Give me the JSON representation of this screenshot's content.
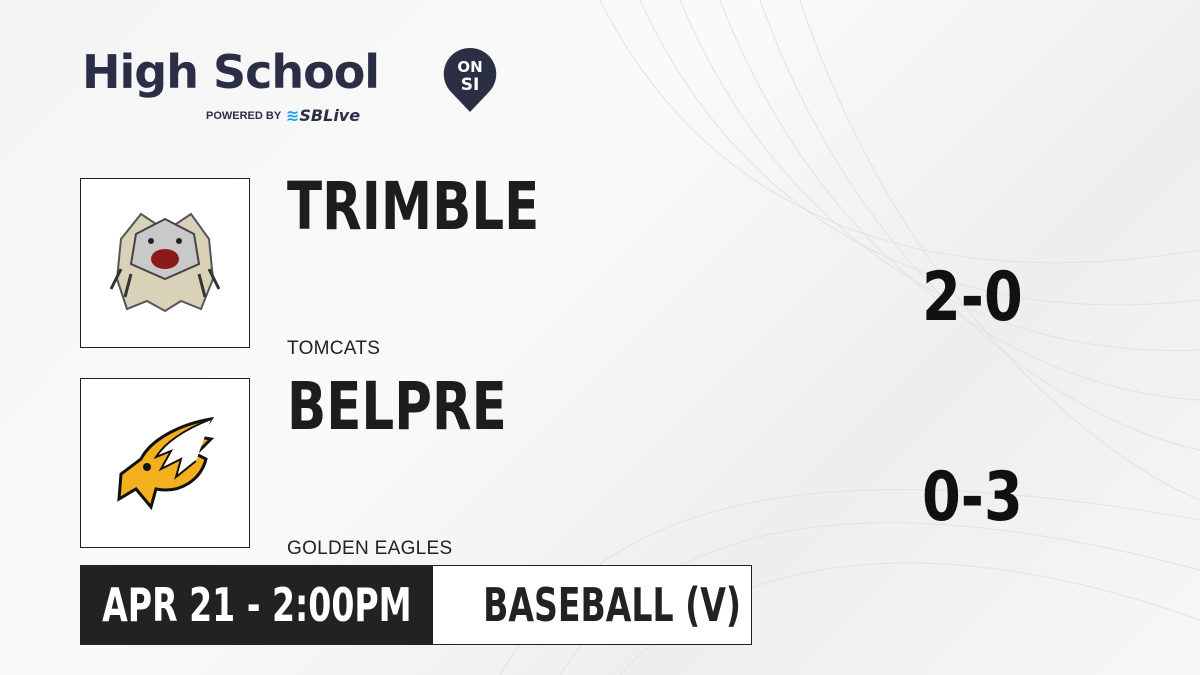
{
  "brand": {
    "title": "High School",
    "pin_text_top": "ON",
    "pin_text_bottom": "SI",
    "powered_by": "POWERED BY",
    "sponsor": "SBLive",
    "colors": {
      "navy": "#2b2f45",
      "sponsor_blue": "#1aa3e8"
    }
  },
  "teams": [
    {
      "name": "TRIMBLE",
      "mascot": "TOMCATS",
      "score": "2-0",
      "logo_icon": "tomcat-logo"
    },
    {
      "name": "BELPRE",
      "mascot": "GOLDEN EAGLES",
      "score": "0-3",
      "logo_icon": "golden-eagle-logo"
    }
  ],
  "game": {
    "datetime": "APR 21 - 2:00PM",
    "sport": "BASEBALL (V)"
  }
}
